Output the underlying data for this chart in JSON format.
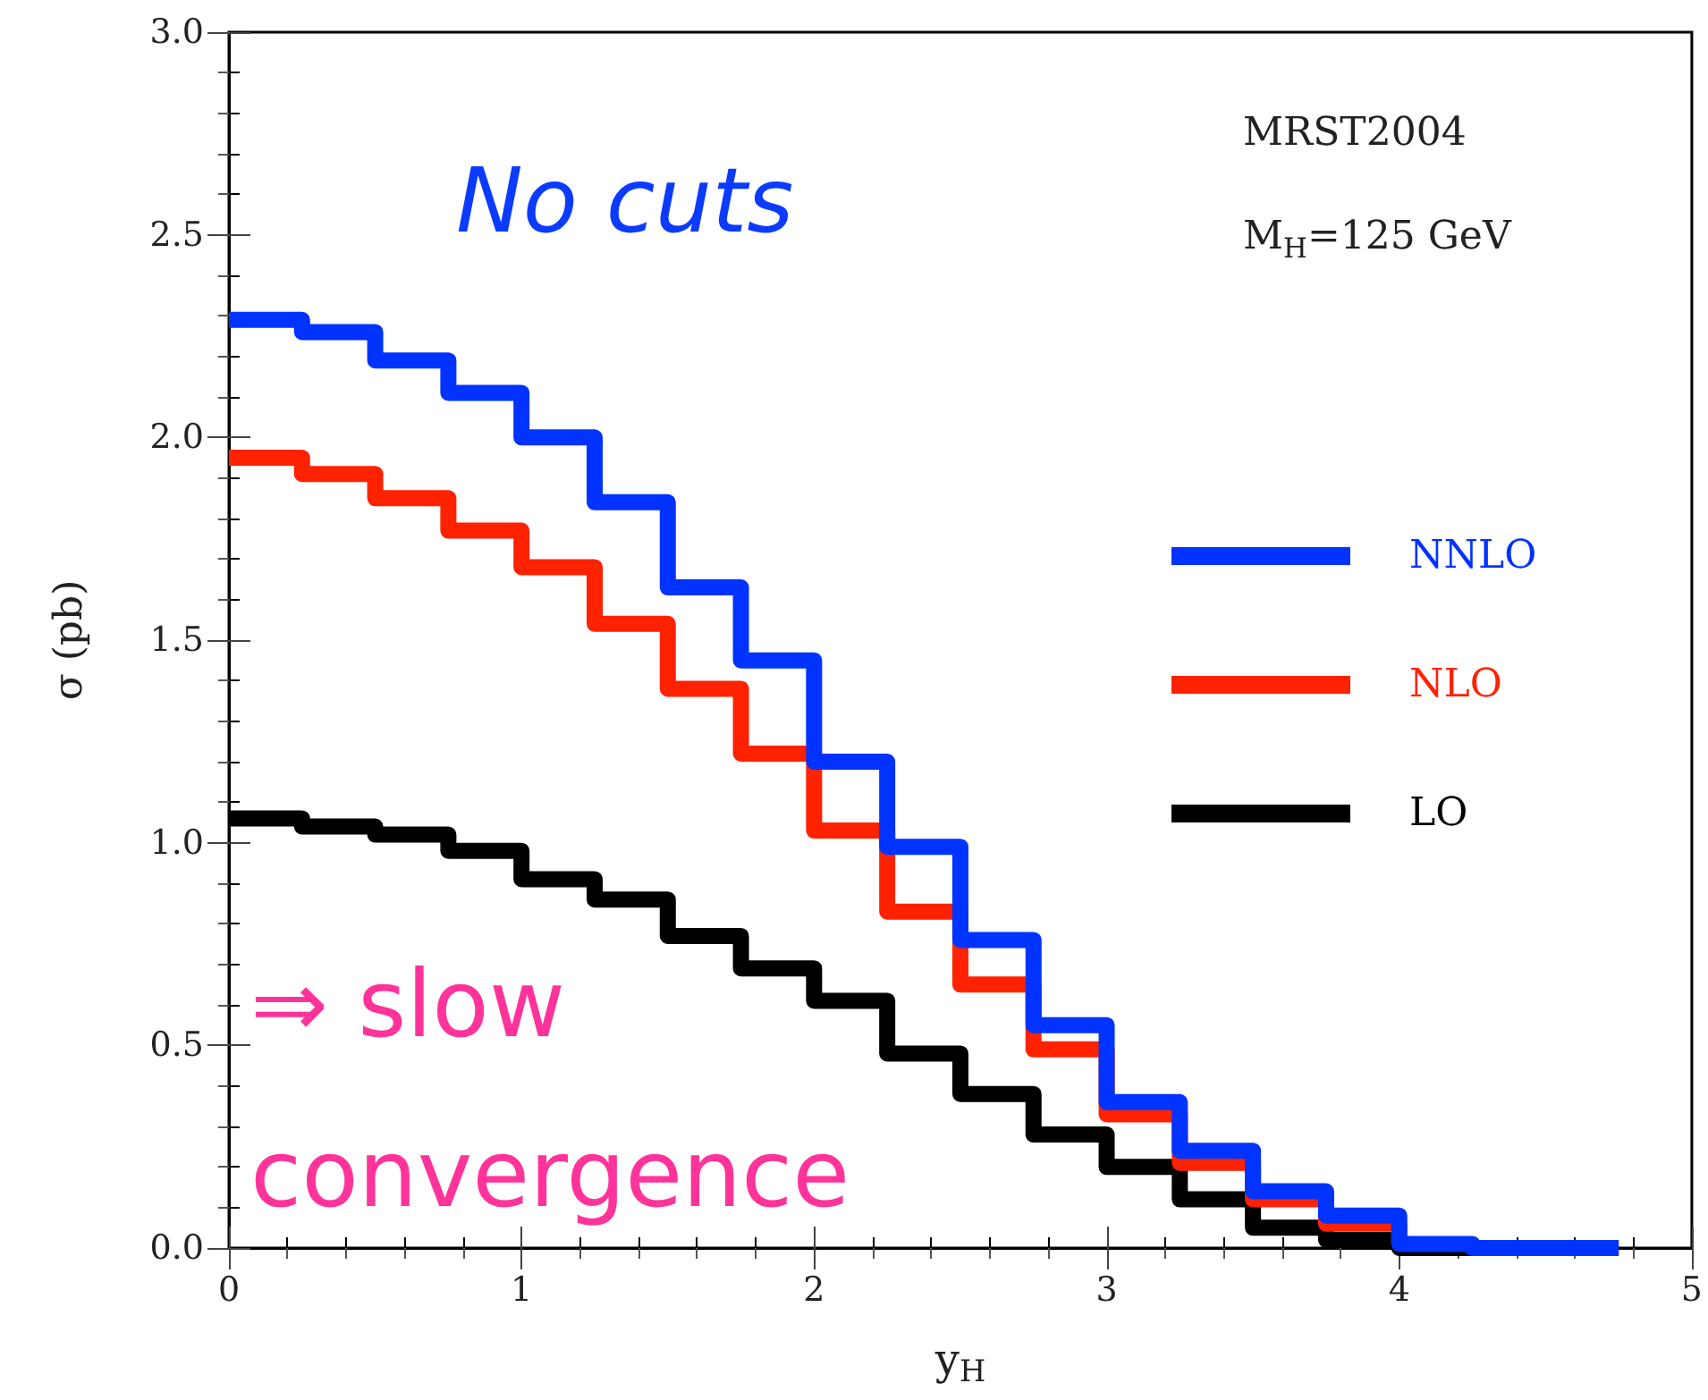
{
  "chart_data": {
    "type": "step",
    "xlabel": "y$_{H}$",
    "ylabel": "σ (pb)",
    "x": [
      0,
      0.25,
      0.5,
      0.75,
      1,
      1.25,
      1.5,
      1.75,
      2,
      2.25,
      2.5,
      2.75,
      3,
      3.25,
      3.5,
      3.75,
      4,
      4.25,
      4.5,
      4.75
    ],
    "series": [
      {
        "name": "NNLO",
        "color": "#0033ff",
        "values": [
          2.29,
          2.26,
          2.19,
          2.11,
          2.0,
          1.84,
          1.63,
          1.45,
          1.2,
          0.99,
          0.76,
          0.55,
          0.36,
          0.24,
          0.14,
          0.08,
          0.01,
          0,
          0,
          0
        ]
      },
      {
        "name": "NLO",
        "color": "#ff2200",
        "values": [
          1.95,
          1.91,
          1.85,
          1.77,
          1.68,
          1.54,
          1.38,
          1.22,
          1.03,
          0.83,
          0.65,
          0.49,
          0.33,
          0.21,
          0.12,
          0.06,
          0.01,
          null,
          null,
          null
        ]
      },
      {
        "name": "LO",
        "color": "#000000",
        "values": [
          1.06,
          1.04,
          1.02,
          0.98,
          0.91,
          0.86,
          0.77,
          0.69,
          0.61,
          0.48,
          0.38,
          0.28,
          0.2,
          0.12,
          0.05,
          0.02,
          0,
          0,
          0,
          0
        ]
      }
    ],
    "xlim": [
      0,
      5
    ],
    "xticks": [
      0,
      1,
      2,
      3,
      4,
      5
    ],
    "ylim": [
      0,
      3
    ],
    "yticks": [
      {
        "value": 0,
        "label": "0.0"
      },
      0.5,
      {
        "value": 1,
        "label": "1.0"
      },
      1.5,
      {
        "value": 2,
        "label": "2.0"
      },
      2.5,
      {
        "value": 3,
        "label": "3.0"
      }
    ],
    "legend": "right",
    "annotations": [
      "No cuts",
      "MRST2004",
      "M$_{H}$=125 GeV",
      "⇒ slow convergence"
    ]
  }
}
